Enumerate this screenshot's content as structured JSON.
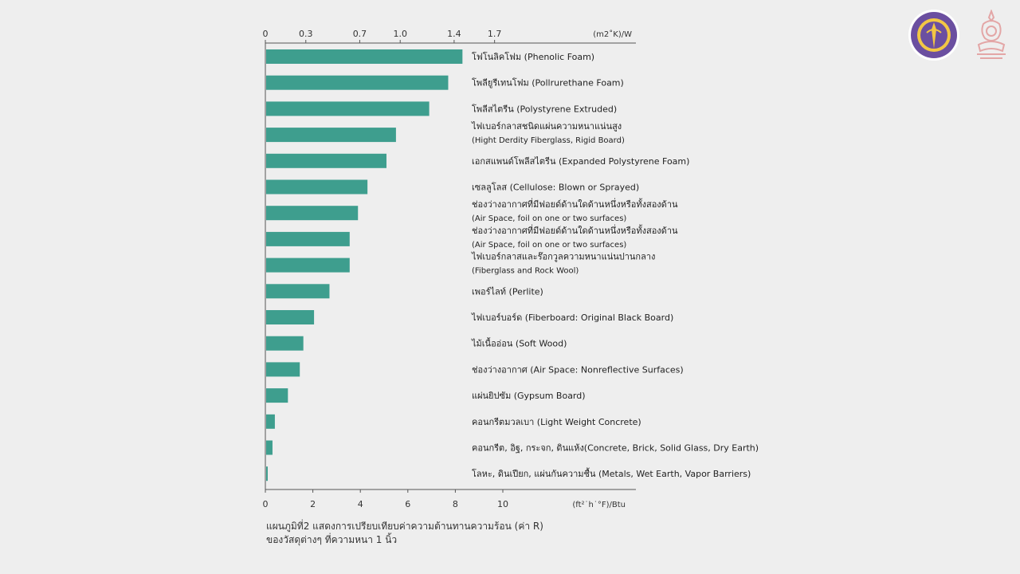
{
  "chart_data": {
    "type": "bar",
    "orientation": "horizontal",
    "categories": [
      [
        "โฟโนลิคโฟม (Phenolic Foam)"
      ],
      [
        "โพลียูรีเทนโฟม (Pollrurethane Foam)"
      ],
      [
        "โพลีสไตรีน (Polystyrene Extruded)"
      ],
      [
        "ไฟเบอร์กลาสชนิดแผ่นความหนาแน่นสูง",
        "(Hight Derdity Fiberglass, Rigid Board)"
      ],
      [
        "เอกสแพนด์โพลีสไตรีน (Expanded Polystyrene Foam)"
      ],
      [
        "เซลลูโลส (Cellulose: Blown or Sprayed)"
      ],
      [
        "ช่องว่างอากาศที่มีฟอยด์ด้านใดด้านหนึ่งหรือทั้งสองด้าน",
        "(Air Space, foil on one or two surfaces)"
      ],
      [
        "ช่องว่างอากาศที่มีฟอยด์ด้านใดด้านหนึ่งหรือทั้งสองด้าน",
        "(Air Space, foil on one or two surfaces)"
      ],
      [
        "ไฟเบอร์กลาสและร๊อกวูลความหนาแน่นปานกลาง",
        "(Fiberglass and Rock Wool)"
      ],
      [
        "เพอร์ไลท์ (Perlite)"
      ],
      [
        "ไฟเบอร์บอร์ด (Fiberboard: Original Black Board)"
      ],
      [
        "ไม้เนื้ออ่อน (Soft Wood)"
      ],
      [
        "ช่องว่างอากาศ (Air Space: Nonreflective Surfaces)"
      ],
      [
        "แผ่นยิปซัม (Gypsum Board)"
      ],
      [
        "คอนกรีตมวลเบา (Light Weight Concrete)"
      ],
      [
        "คอนกรีต, อิฐ, กระจก, ดินแห้ง(Concrete, Brick, Solid Glass, Dry Earth)"
      ],
      [
        "โลหะ, ดินเปียก, แผ่นกันความชื้น (Metals, Wet Earth, Vapor Barriers)"
      ]
    ],
    "values": [
      8.3,
      7.7,
      6.9,
      5.5,
      5.1,
      4.3,
      3.9,
      3.55,
      3.55,
      2.7,
      2.05,
      1.6,
      1.45,
      0.95,
      0.4,
      0.3,
      0.1
    ],
    "bottom_axis": {
      "unit": "(ft²˙h˙°F)/Btu",
      "ticks": [
        0,
        2,
        4,
        6,
        8,
        10
      ],
      "tick_labels": [
        "0",
        "2",
        "4",
        "6",
        "8",
        "10"
      ]
    },
    "top_axis": {
      "unit": "(m2˚K)/W",
      "ticks": [
        0,
        0.3,
        0.7,
        1.0,
        1.4,
        1.7
      ],
      "tick_labels": [
        "0",
        "0.3",
        "0.7",
        "1.0",
        "1.4",
        "1.7"
      ]
    },
    "xlim": [
      0,
      15.65
    ],
    "grid": false,
    "legend": "none",
    "bar_color": "#3e9e8e",
    "axis_color": "#555555"
  },
  "caption": {
    "line1": "แผนภูมิที่2 แสดงการเปรียบเทียบค่าความต้านทานความร้อน (ค่า R)",
    "line2": "ของวัสดุต่างๆ ที่ความหนา 1 นิ้ว"
  },
  "logos": {
    "left_icon": "university-seal-icon",
    "right_icon": "chulalongkorn-emblem-icon",
    "left_color": "#6b4fa0",
    "left_accent": "#f2c744",
    "right_color": "#e3a6a6"
  }
}
